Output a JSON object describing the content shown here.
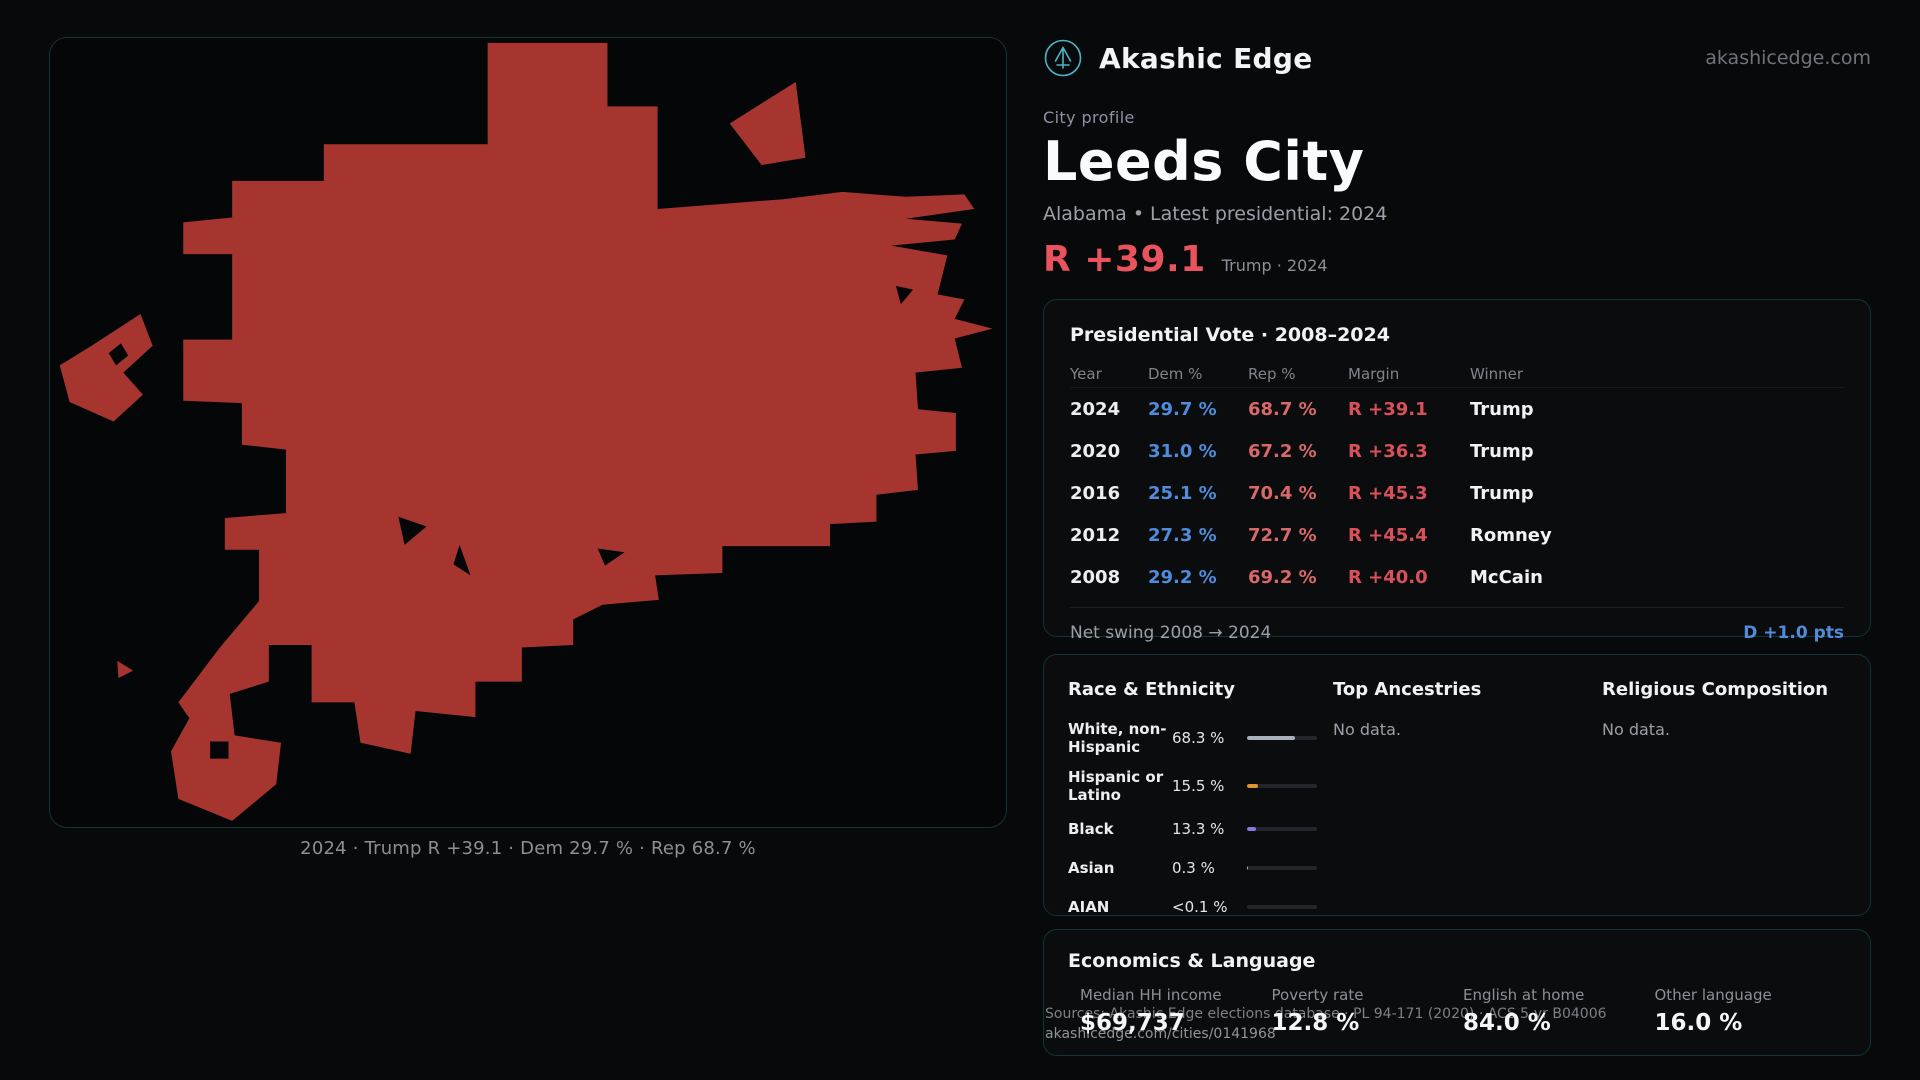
{
  "brand": {
    "name": "Akashic Edge",
    "domain": "akashicedge.com"
  },
  "profile": {
    "eyebrow": "City profile",
    "title": "Leeds City",
    "subtitle": "Alabama • Latest presidential: 2024",
    "margin": "R +39.1",
    "margin_context": "Trump · 2024"
  },
  "map": {
    "caption": "2024 · Trump R +39.1 · Dem 29.7 % · Rep 68.7 %",
    "fill_color": "#a63530"
  },
  "vote_panel": {
    "title": "Presidential Vote · 2008–2024",
    "columns": [
      "Year",
      "Dem %",
      "Rep %",
      "Margin",
      "Winner"
    ],
    "rows": [
      {
        "year": "2024",
        "dem": "29.7 %",
        "rep": "68.7 %",
        "margin": "R +39.1",
        "winner": "Trump"
      },
      {
        "year": "2020",
        "dem": "31.0 %",
        "rep": "67.2 %",
        "margin": "R +36.3",
        "winner": "Trump"
      },
      {
        "year": "2016",
        "dem": "25.1 %",
        "rep": "70.4 %",
        "margin": "R +45.3",
        "winner": "Trump"
      },
      {
        "year": "2012",
        "dem": "27.3 %",
        "rep": "72.7 %",
        "margin": "R +45.4",
        "winner": "Romney"
      },
      {
        "year": "2008",
        "dem": "29.2 %",
        "rep": "69.2 %",
        "margin": "R +40.0",
        "winner": "McCain"
      }
    ],
    "footer_label": "Net swing 2008 → 2024",
    "footer_value": "D +1.0 pts"
  },
  "demographics": {
    "race": {
      "title": "Race & Ethnicity",
      "rows": [
        {
          "label": "White, non-Hispanic",
          "value": "68.3 %",
          "pct": 68.3,
          "color": "#a9b0ba"
        },
        {
          "label": "Hispanic or Latino",
          "value": "15.5 %",
          "pct": 15.5,
          "color": "#e0952f"
        },
        {
          "label": "Black",
          "value": "13.3 %",
          "pct": 13.3,
          "color": "#8878e0"
        },
        {
          "label": "Asian",
          "value": "0.3 %",
          "pct": 0.3,
          "color": "#a9b0ba"
        },
        {
          "label": "AIAN",
          "value": "<0.1 %",
          "pct": 0,
          "color": "#a9b0ba"
        }
      ]
    },
    "ancestries": {
      "title": "Top Ancestries",
      "empty": "No data."
    },
    "religion": {
      "title": "Religious Composition",
      "empty": "No data."
    }
  },
  "economics": {
    "title": "Economics & Language",
    "stats": [
      {
        "label": "Median HH income",
        "value": "$69,737"
      },
      {
        "label": "Poverty rate",
        "value": "12.8 %"
      },
      {
        "label": "English at home",
        "value": "84.0 %"
      },
      {
        "label": "Other language",
        "value": "16.0 %"
      }
    ]
  },
  "footer": {
    "sources": "Sources: Akashic Edge elections database · PL 94-171 (2020) · ACS 5-yr B04006",
    "permalink": "akashicedge.com/cities/0141968"
  },
  "colors": {
    "dem_blue": "#4f8cdb",
    "rep_red": "#d96868",
    "margin_red": "#d8515a",
    "headline_red": "#e8535e",
    "teal_logo": "#4fb3c6"
  }
}
